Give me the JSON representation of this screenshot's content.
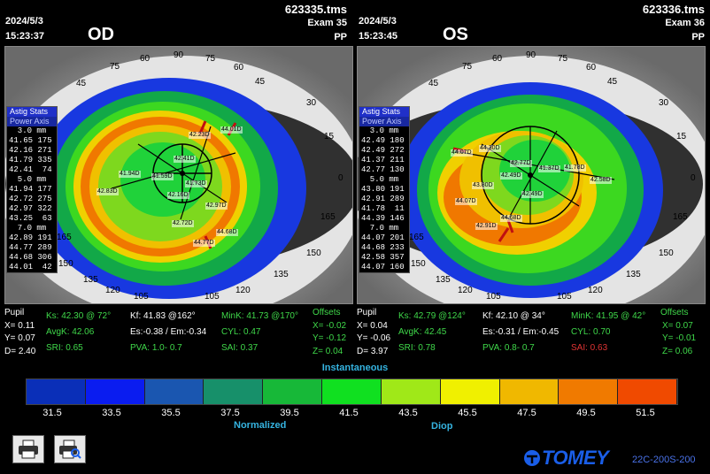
{
  "left": {
    "date": "2024/5/3",
    "time": "15:23:37",
    "eye": "OD",
    "file": "623335.tms",
    "exam": "Exam 35",
    "mode": "PP",
    "tab1": "Astig Stats",
    "tab2": "Power  Axis",
    "zones": [
      {
        "label": "3.0 mm",
        "rows": [
          "41.65 175",
          "42.16 271",
          "41.79 335",
          "42.41  74"
        ]
      },
      {
        "label": "5.0 mm",
        "rows": [
          "41.94 177",
          "42.72 275",
          "42.97 322",
          "43.25  63"
        ]
      },
      {
        "label": "7.0 mm",
        "rows": [
          "42.89 191",
          "44.77 289",
          "44.68 306",
          "44.01  42"
        ]
      }
    ],
    "points": [
      "42.23D",
      "44.01D",
      "42.41D",
      "41.94D",
      "41.59D",
      "41.73D",
      "42.83D",
      "42.16D",
      "42.97D",
      "42.72D",
      "44.68D",
      "44.77D"
    ],
    "stats": {
      "pupil": "Pupil",
      "x": "X=  0.11",
      "y": "Y=  0.07",
      "d": "D=  2.40",
      "ks": "Ks: 42.30 @ 72°",
      "kf": "Kf: 41.83 @162°",
      "mink": "MinK: 41.73 @170°",
      "avgk": "AvgK: 42.06",
      "es": "Es:-0.38 / Em:-0.34",
      "cyl": "CYL:  0.47",
      "sri": "SRI:  0.65",
      "pva": "PVA:  1.0-  0.7",
      "sai": "SAI:  0.37",
      "off_title": "Offsets",
      "ox": "X= -0.02",
      "oy": "Y= -0.12",
      "oz": "Z=  0.04"
    }
  },
  "right": {
    "date": "2024/5/3",
    "time": "15:23:45",
    "eye": "OS",
    "file": "623336.tms",
    "exam": "Exam 36",
    "mode": "PP",
    "tab1": "Astig Stats",
    "tab2": "Power  Axis",
    "zones": [
      {
        "label": "3.0 mm",
        "rows": [
          "42.49 180",
          "42.49 272",
          "41.37 211",
          "42.77 130"
        ]
      },
      {
        "label": "5.0 mm",
        "rows": [
          "43.80 191",
          "42.91 289",
          "41.78  11",
          "44.39 146"
        ]
      },
      {
        "label": "7.0 mm",
        "rows": [
          "44.07 201",
          "44.68 233",
          "42.58 357",
          "44.07 160"
        ]
      }
    ],
    "points": [
      "44.30D",
      "44.07D",
      "42.77D",
      "41.37D",
      "42.49D",
      "41.78D",
      "42.58D",
      "43.80D",
      "44.07D",
      "42.49D",
      "42.91D",
      "44.68D"
    ],
    "stats": {
      "pupil": "Pupil",
      "x": "X=  0.04",
      "y": "Y= -0.06",
      "d": "D=  3.97",
      "ks": "Ks: 42.79 @124°",
      "kf": "Kf: 42.10 @ 34°",
      "mink": "MinK: 41.95 @ 42°",
      "avgk": "AvgK: 42.45",
      "es": "Es:-0.31 / Em:-0.45",
      "cyl": "CYL:  0.70",
      "sri": "SRI:  0.78",
      "pva": "PVA:  0.8-  0.7",
      "sai": "SAI:  0.63",
      "off_title": "Offsets",
      "ox": "X=  0.07",
      "oy": "Y= -0.01",
      "oz": "Z=  0.06"
    }
  },
  "axis_labels_left": [
    "90",
    "75",
    "60",
    "45",
    "30",
    "15",
    "0",
    "165",
    "150",
    "135",
    "120",
    "105",
    "105",
    "120",
    "135",
    "150",
    "165",
    "60",
    "75",
    "45"
  ],
  "axis_labels_right": [
    "90",
    "75",
    "60",
    "45",
    "30",
    "15",
    "0",
    "165",
    "150",
    "135",
    "120",
    "105",
    "105",
    "120",
    "135",
    "150",
    "165",
    "60",
    "75",
    "45"
  ],
  "scale": {
    "title": "Instantaneous",
    "values": [
      "31.5",
      "33.5",
      "35.5",
      "37.5",
      "39.5",
      "41.5",
      "43.5",
      "45.5",
      "47.5",
      "49.5",
      "51.5"
    ],
    "colors": [
      "#0a2fb8",
      "#0a1cf0",
      "#1a56b0",
      "#17906a",
      "#17b838",
      "#10e020",
      "#a0e818",
      "#f0f000",
      "#f0b800",
      "#f07a00",
      "#f04a00"
    ],
    "normalized": "Normalized",
    "diop": "Diop"
  },
  "brand": {
    "logo": "TOMEY",
    "model": "22C-200S-200"
  },
  "print_icon": "printer-icon",
  "preview_icon": "print-preview-icon"
}
